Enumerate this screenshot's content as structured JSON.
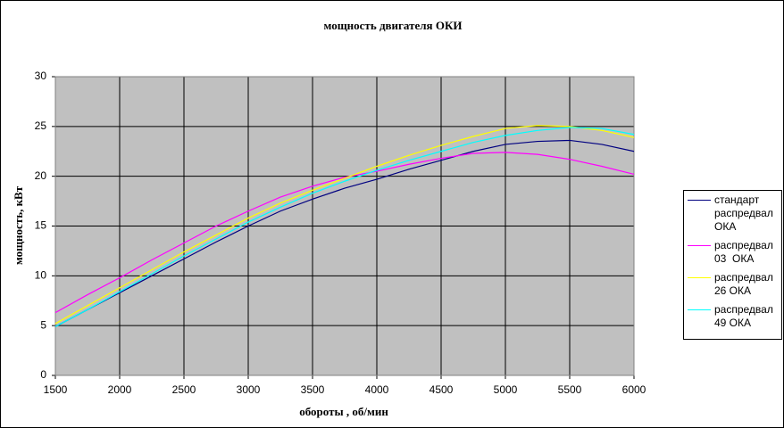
{
  "chart_data": {
    "type": "line",
    "title": "мощность двигателя ОКИ",
    "x_label": "обороты , об/мин",
    "y_label": "мощность, кВт",
    "x": [
      1500,
      1750,
      2000,
      2250,
      2500,
      2750,
      3000,
      3250,
      3500,
      3750,
      4000,
      4250,
      4500,
      4750,
      5000,
      5250,
      5500,
      5750,
      6000
    ],
    "series": [
      {
        "name": "стандарт распредвал ОКА",
        "color": "#000080",
        "values": [
          4.9,
          6.6,
          8.3,
          10.0,
          11.7,
          13.4,
          15.0,
          16.5,
          17.7,
          18.8,
          19.7,
          20.7,
          21.6,
          22.5,
          23.2,
          23.5,
          23.6,
          23.2,
          22.5
        ]
      },
      {
        "name": "распредвал 03  ОКА",
        "color": "#ff00ff",
        "values": [
          6.3,
          8.1,
          9.8,
          11.6,
          13.3,
          15.0,
          16.5,
          17.9,
          19.0,
          19.9,
          20.5,
          21.2,
          21.8,
          22.3,
          22.4,
          22.2,
          21.7,
          21.0,
          20.2
        ]
      },
      {
        "name": "распредвал 26 ОКА",
        "color": "#ffff00",
        "values": [
          5.2,
          7.0,
          8.8,
          10.6,
          12.4,
          14.1,
          15.8,
          17.3,
          18.6,
          19.8,
          21.0,
          22.1,
          23.1,
          24.0,
          24.8,
          25.1,
          25.0,
          24.6,
          23.9
        ]
      },
      {
        "name": "распредвал 49 ОКА",
        "color": "#00ffff",
        "values": [
          4.9,
          6.6,
          8.4,
          10.2,
          12.0,
          13.7,
          15.4,
          16.9,
          18.3,
          19.5,
          20.6,
          21.6,
          22.5,
          23.4,
          24.1,
          24.6,
          24.9,
          24.8,
          24.2
        ]
      }
    ],
    "xlim": [
      1500,
      6000
    ],
    "xticks": [
      1500,
      2000,
      2500,
      3000,
      3500,
      4000,
      4500,
      5000,
      5500,
      6000
    ],
    "ylim": [
      0,
      30
    ],
    "yticks": [
      0,
      5,
      10,
      15,
      20,
      25,
      30
    ],
    "grid": true,
    "legend": "right"
  }
}
